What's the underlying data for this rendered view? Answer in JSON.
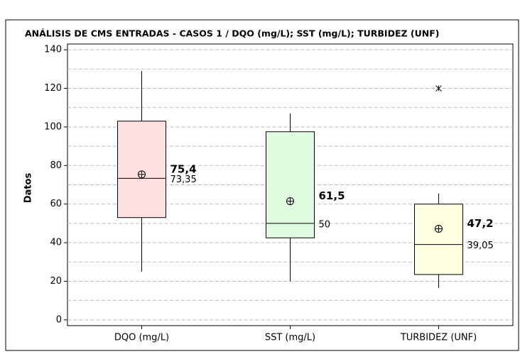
{
  "chart_data": {
    "type": "box",
    "title": "ANÁLISIS DE CMS ENTRADAS - CASOS 1  /  DQO (mg/L); SST (mg/L); TURBIDEZ (UNF)",
    "y_label": "Datos",
    "ylim": [
      -3,
      143
    ],
    "yticks": [
      0,
      20,
      40,
      60,
      80,
      100,
      120,
      140
    ],
    "minor_yticks": [
      10,
      30,
      50,
      70,
      90,
      110,
      130
    ],
    "grid": true,
    "series": [
      {
        "name": "DQO (mg/L)",
        "color": "#fde0e0",
        "min": 25,
        "q1": 53,
        "median": 73.35,
        "q3": 103,
        "max": 129,
        "mean": 75.4,
        "outliers": [],
        "mean_label": "75,4",
        "median_label": "73,35"
      },
      {
        "name": "SST (mg/L)",
        "color": "#e0fce0",
        "min": 20,
        "q1": 42.5,
        "median": 50,
        "q3": 97.5,
        "max": 107,
        "mean": 61.5,
        "outliers": [],
        "mean_label": "61,5",
        "median_label": "50"
      },
      {
        "name": "TURBIDEZ (UNF)",
        "color": "#fefee0",
        "min": 16.5,
        "q1": 23.5,
        "median": 39.05,
        "q3": 60,
        "max": 65.5,
        "mean": 47.2,
        "outliers": [
          120
        ],
        "mean_label": "47,2",
        "median_label": "39,05"
      }
    ]
  }
}
